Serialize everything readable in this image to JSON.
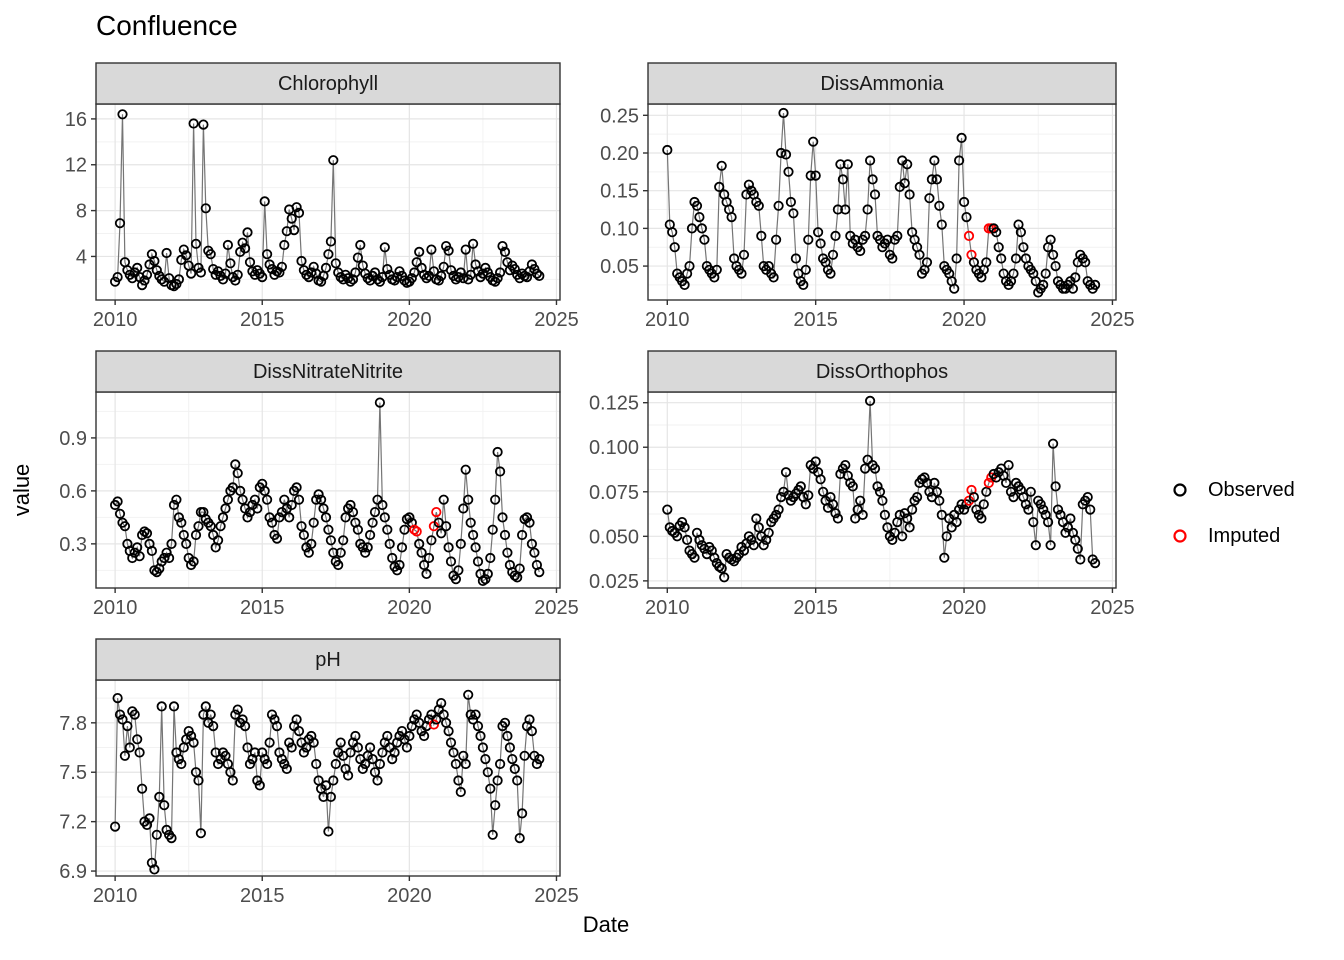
{
  "title": "Confluence",
  "axis": {
    "x_label": "Date",
    "y_label": "value"
  },
  "legend": {
    "items": [
      {
        "label": "Observed",
        "color": "#000000"
      },
      {
        "label": "Imputed",
        "color": "#FF0000"
      }
    ]
  },
  "colors": {
    "observed": "#000000",
    "imputed": "#FF0000",
    "line": "#757575",
    "strip_bg": "#D9D9D9",
    "panel_border": "#333333",
    "grid_major": "#E5E5E5",
    "grid_minor": "#F2F2F2",
    "tick_text": "#4D4D4D",
    "axis_tick": "#333333",
    "panel_bg": "#FFFFFF"
  },
  "x_axis": {
    "ticks": [
      2010,
      2015,
      2020,
      2025
    ],
    "tick_labels": [
      "2010",
      "2015",
      "2020",
      "2025"
    ],
    "minor_ticks": [
      2012.5,
      2017.5,
      2022.5
    ],
    "range": [
      2009.35,
      2025.12
    ]
  },
  "chart_data": [
    {
      "title": "Chlorophyll",
      "type": "line-scatter",
      "x_start": 2010.0,
      "x_step_years": 0.0833333,
      "ylim": [
        0.2,
        17.3
      ],
      "yticks": [
        4,
        8,
        12,
        16
      ],
      "ytick_labels": [
        "4",
        "8",
        "12",
        "16"
      ],
      "imputed_indices": [],
      "values": [
        1.8,
        2.2,
        6.9,
        16.4,
        3.5,
        2.8,
        2.4,
        2.1,
        2.6,
        3.0,
        2.2,
        1.5,
        1.9,
        2.4,
        3.3,
        4.2,
        3.6,
        2.8,
        2.3,
        2.0,
        1.8,
        4.3,
        2.1,
        1.5,
        1.4,
        1.6,
        2.0,
        3.7,
        4.6,
        4.1,
        3.2,
        2.5,
        15.6,
        5.1,
        3.0,
        2.6,
        15.5,
        8.2,
        4.5,
        4.2,
        2.9,
        2.4,
        2.7,
        2.3,
        2.0,
        2.5,
        5.0,
        3.4,
        2.2,
        1.9,
        2.4,
        4.4,
        5.2,
        4.7,
        6.1,
        3.5,
        2.7,
        2.4,
        2.8,
        2.5,
        2.2,
        8.8,
        4.2,
        3.3,
        2.9,
        2.4,
        2.7,
        2.6,
        3.1,
        5.0,
        6.2,
        8.1,
        7.3,
        6.3,
        8.3,
        7.8,
        3.6,
        2.8,
        2.4,
        2.2,
        2.6,
        3.1,
        2.5,
        1.9,
        1.8,
        2.3,
        3.0,
        4.2,
        5.3,
        12.4,
        3.4,
        2.6,
        2.2,
        2.0,
        2.4,
        2.1,
        1.8,
        2.0,
        2.6,
        3.9,
        5.0,
        3.2,
        2.5,
        2.1,
        1.9,
        2.3,
        2.6,
        2.0,
        1.8,
        2.2,
        4.8,
        2.9,
        2.4,
        2.0,
        1.9,
        2.2,
        2.7,
        2.3,
        1.9,
        1.7,
        1.8,
        2.1,
        2.6,
        3.5,
        4.4,
        3.0,
        2.4,
        2.1,
        2.3,
        4.6,
        2.7,
        2.0,
        1.9,
        2.3,
        3.1,
        4.9,
        4.5,
        2.8,
        2.3,
        2.0,
        2.2,
        2.6,
        2.1,
        4.6,
        2.0,
        2.4,
        5.1,
        3.3,
        2.7,
        2.2,
        2.5,
        3.0,
        2.6,
        2.2,
        1.9,
        1.8,
        2.1,
        2.6,
        4.9,
        4.4,
        3.5,
        2.8,
        3.2,
        2.9,
        2.4,
        2.1,
        2.5,
        2.3,
        2.2,
        2.7,
        3.3,
        2.9,
        2.5,
        2.3
      ]
    },
    {
      "title": "DissAmmonia",
      "type": "line-scatter",
      "x_start": 2010.0,
      "x_step_years": 0.0833333,
      "ylim": [
        0.005,
        0.265
      ],
      "yticks": [
        0.05,
        0.1,
        0.15,
        0.2,
        0.25
      ],
      "ytick_labels": [
        "0.05",
        "0.10",
        "0.15",
        "0.20",
        "0.25"
      ],
      "imputed_indices": [
        122,
        123,
        130,
        131
      ],
      "values": [
        0.204,
        0.105,
        0.095,
        0.075,
        0.04,
        0.035,
        0.03,
        0.025,
        0.04,
        0.05,
        0.1,
        0.135,
        0.13,
        0.115,
        0.1,
        0.085,
        0.05,
        0.045,
        0.04,
        0.035,
        0.045,
        0.155,
        0.183,
        0.145,
        0.135,
        0.125,
        0.115,
        0.06,
        0.05,
        0.045,
        0.04,
        0.065,
        0.145,
        0.158,
        0.15,
        0.145,
        0.135,
        0.13,
        0.09,
        0.05,
        0.045,
        0.05,
        0.04,
        0.035,
        0.085,
        0.13,
        0.2,
        0.253,
        0.198,
        0.175,
        0.135,
        0.12,
        0.06,
        0.04,
        0.03,
        0.025,
        0.045,
        0.085,
        0.17,
        0.215,
        0.17,
        0.095,
        0.08,
        0.06,
        0.055,
        0.045,
        0.04,
        0.065,
        0.09,
        0.125,
        0.185,
        0.165,
        0.125,
        0.185,
        0.09,
        0.08,
        0.085,
        0.075,
        0.07,
        0.085,
        0.09,
        0.125,
        0.19,
        0.165,
        0.145,
        0.09,
        0.085,
        0.075,
        0.08,
        0.085,
        0.065,
        0.06,
        0.085,
        0.09,
        0.155,
        0.19,
        0.16,
        0.185,
        0.145,
        0.095,
        0.085,
        0.075,
        0.065,
        0.04,
        0.045,
        0.055,
        0.14,
        0.165,
        0.19,
        0.165,
        0.13,
        0.105,
        0.05,
        0.045,
        0.04,
        0.03,
        0.02,
        0.06,
        0.19,
        0.22,
        0.135,
        0.115,
        0.09,
        0.065,
        0.055,
        0.045,
        0.04,
        0.035,
        0.045,
        0.055,
        0.1,
        0.1,
        0.1,
        0.095,
        0.075,
        0.06,
        0.04,
        0.03,
        0.025,
        0.03,
        0.04,
        0.06,
        0.105,
        0.095,
        0.075,
        0.06,
        0.05,
        0.045,
        0.04,
        0.03,
        0.015,
        0.02,
        0.025,
        0.04,
        0.075,
        0.085,
        0.065,
        0.05,
        0.03,
        0.025,
        0.02,
        0.02,
        0.025,
        0.03,
        0.02,
        0.035,
        0.055,
        0.065,
        0.06,
        0.055,
        0.03,
        0.025,
        0.02,
        0.025
      ]
    },
    {
      "title": "DissNitrateNitrite",
      "type": "line-scatter",
      "x_start": 2010.0,
      "x_step_years": 0.0833333,
      "ylim": [
        0.05,
        1.16
      ],
      "yticks": [
        0.3,
        0.6,
        0.9
      ],
      "ytick_labels": [
        "0.3",
        "0.6",
        "0.9"
      ],
      "imputed_indices": [
        122,
        123,
        130,
        131
      ],
      "values": [
        0.52,
        0.54,
        0.47,
        0.42,
        0.4,
        0.3,
        0.26,
        0.22,
        0.25,
        0.28,
        0.23,
        0.35,
        0.37,
        0.36,
        0.3,
        0.26,
        0.15,
        0.14,
        0.16,
        0.2,
        0.22,
        0.25,
        0.22,
        0.3,
        0.52,
        0.55,
        0.45,
        0.42,
        0.35,
        0.3,
        0.22,
        0.18,
        0.2,
        0.35,
        0.4,
        0.48,
        0.48,
        0.44,
        0.42,
        0.4,
        0.35,
        0.28,
        0.32,
        0.4,
        0.45,
        0.5,
        0.55,
        0.6,
        0.62,
        0.75,
        0.7,
        0.6,
        0.55,
        0.5,
        0.45,
        0.48,
        0.52,
        0.55,
        0.5,
        0.62,
        0.64,
        0.6,
        0.55,
        0.45,
        0.42,
        0.35,
        0.33,
        0.45,
        0.48,
        0.55,
        0.5,
        0.45,
        0.52,
        0.6,
        0.62,
        0.55,
        0.4,
        0.35,
        0.28,
        0.25,
        0.3,
        0.42,
        0.55,
        0.58,
        0.55,
        0.5,
        0.45,
        0.38,
        0.32,
        0.25,
        0.2,
        0.18,
        0.25,
        0.32,
        0.45,
        0.5,
        0.52,
        0.48,
        0.42,
        0.38,
        0.3,
        0.28,
        0.25,
        0.28,
        0.35,
        0.42,
        0.48,
        0.55,
        1.1,
        0.52,
        0.45,
        0.38,
        0.3,
        0.22,
        0.17,
        0.15,
        0.18,
        0.28,
        0.38,
        0.44,
        0.45,
        0.42,
        0.38,
        0.37,
        0.3,
        0.25,
        0.18,
        0.13,
        0.22,
        0.32,
        0.4,
        0.48,
        0.42,
        0.36,
        0.55,
        0.4,
        0.28,
        0.2,
        0.12,
        0.1,
        0.15,
        0.3,
        0.5,
        0.72,
        0.55,
        0.42,
        0.35,
        0.28,
        0.2,
        0.13,
        0.09,
        0.1,
        0.13,
        0.22,
        0.38,
        0.55,
        0.82,
        0.71,
        0.45,
        0.35,
        0.25,
        0.18,
        0.14,
        0.12,
        0.11,
        0.16,
        0.35,
        0.44,
        0.45,
        0.42,
        0.3,
        0.25,
        0.18,
        0.14
      ]
    },
    {
      "title": "DissOrthophos",
      "type": "line-scatter",
      "x_start": 2010.0,
      "x_step_years": 0.0833333,
      "ylim": [
        0.021,
        0.131
      ],
      "yticks": [
        0.025,
        0.05,
        0.075,
        0.1,
        0.125
      ],
      "ytick_labels": [
        "0.025",
        "0.050",
        "0.075",
        "0.100",
        "0.125"
      ],
      "imputed_indices": [
        122,
        123,
        130,
        131
      ],
      "values": [
        0.065,
        0.055,
        0.053,
        0.052,
        0.05,
        0.056,
        0.058,
        0.055,
        0.048,
        0.042,
        0.04,
        0.038,
        0.052,
        0.048,
        0.045,
        0.043,
        0.04,
        0.044,
        0.042,
        0.038,
        0.035,
        0.033,
        0.032,
        0.027,
        0.04,
        0.038,
        0.037,
        0.036,
        0.038,
        0.04,
        0.044,
        0.042,
        0.046,
        0.05,
        0.048,
        0.045,
        0.06,
        0.055,
        0.05,
        0.045,
        0.048,
        0.052,
        0.058,
        0.06,
        0.062,
        0.065,
        0.072,
        0.075,
        0.086,
        0.073,
        0.07,
        0.072,
        0.074,
        0.076,
        0.078,
        0.072,
        0.068,
        0.073,
        0.09,
        0.088,
        0.092,
        0.086,
        0.082,
        0.075,
        0.07,
        0.066,
        0.072,
        0.068,
        0.063,
        0.06,
        0.085,
        0.088,
        0.09,
        0.084,
        0.08,
        0.078,
        0.06,
        0.065,
        0.07,
        0.062,
        0.088,
        0.093,
        0.126,
        0.09,
        0.088,
        0.078,
        0.075,
        0.07,
        0.062,
        0.055,
        0.05,
        0.048,
        0.052,
        0.058,
        0.062,
        0.05,
        0.063,
        0.06,
        0.055,
        0.065,
        0.07,
        0.072,
        0.08,
        0.082,
        0.083,
        0.08,
        0.075,
        0.072,
        0.08,
        0.075,
        0.07,
        0.062,
        0.038,
        0.05,
        0.06,
        0.055,
        0.062,
        0.058,
        0.065,
        0.068,
        0.065,
        0.068,
        0.07,
        0.076,
        0.072,
        0.065,
        0.062,
        0.06,
        0.068,
        0.075,
        0.08,
        0.083,
        0.085,
        0.083,
        0.086,
        0.088,
        0.084,
        0.08,
        0.09,
        0.075,
        0.072,
        0.08,
        0.078,
        0.076,
        0.072,
        0.068,
        0.065,
        0.075,
        0.058,
        0.045,
        0.07,
        0.068,
        0.065,
        0.062,
        0.058,
        0.045,
        0.102,
        0.078,
        0.065,
        0.062,
        0.058,
        0.052,
        0.055,
        0.06,
        0.052,
        0.048,
        0.043,
        0.037,
        0.068,
        0.07,
        0.072,
        0.065,
        0.037,
        0.035
      ]
    },
    {
      "title": "pH",
      "type": "line-scatter",
      "x_start": 2010.0,
      "x_step_years": 0.0833333,
      "ylim": [
        6.87,
        8.06
      ],
      "yticks": [
        6.9,
        7.2,
        7.5,
        7.8
      ],
      "ytick_labels": [
        "6.9",
        "7.2",
        "7.5",
        "7.8"
      ],
      "imputed_indices": [
        130
      ],
      "values": [
        7.17,
        7.95,
        7.85,
        7.82,
        7.6,
        7.78,
        7.65,
        7.87,
        7.85,
        7.7,
        7.62,
        7.4,
        7.2,
        7.18,
        7.22,
        6.95,
        6.91,
        7.12,
        7.35,
        7.9,
        7.3,
        7.15,
        7.12,
        7.1,
        7.9,
        7.62,
        7.58,
        7.55,
        7.65,
        7.7,
        7.75,
        7.72,
        7.68,
        7.5,
        7.45,
        7.13,
        7.85,
        7.9,
        7.8,
        7.85,
        7.78,
        7.62,
        7.55,
        7.58,
        7.62,
        7.6,
        7.55,
        7.5,
        7.45,
        7.85,
        7.88,
        7.8,
        7.82,
        7.78,
        7.65,
        7.55,
        7.58,
        7.62,
        7.45,
        7.42,
        7.62,
        7.58,
        7.55,
        7.68,
        7.85,
        7.82,
        7.78,
        7.62,
        7.58,
        7.55,
        7.52,
        7.68,
        7.65,
        7.78,
        7.82,
        7.75,
        7.68,
        7.62,
        7.65,
        7.7,
        7.72,
        7.68,
        7.55,
        7.45,
        7.4,
        7.35,
        7.42,
        7.14,
        7.35,
        7.45,
        7.55,
        7.62,
        7.68,
        7.6,
        7.52,
        7.48,
        7.62,
        7.68,
        7.72,
        7.65,
        7.58,
        7.52,
        7.55,
        7.6,
        7.65,
        7.58,
        7.5,
        7.45,
        7.55,
        7.62,
        7.68,
        7.72,
        7.65,
        7.58,
        7.62,
        7.68,
        7.72,
        7.75,
        7.7,
        7.65,
        7.72,
        7.78,
        7.82,
        7.85,
        7.8,
        7.75,
        7.72,
        7.78,
        7.82,
        7.85,
        7.79,
        7.82,
        7.88,
        7.92,
        7.85,
        7.8,
        7.75,
        7.68,
        7.62,
        7.55,
        7.45,
        7.38,
        7.6,
        7.55,
        7.97,
        7.85,
        7.82,
        7.85,
        7.78,
        7.72,
        7.65,
        7.58,
        7.5,
        7.4,
        7.12,
        7.3,
        7.45,
        7.55,
        7.78,
        7.8,
        7.72,
        7.65,
        7.58,
        7.52,
        7.45,
        7.1,
        7.25,
        7.6,
        7.78,
        7.82,
        7.75,
        7.6,
        7.55,
        7.58
      ]
    }
  ]
}
